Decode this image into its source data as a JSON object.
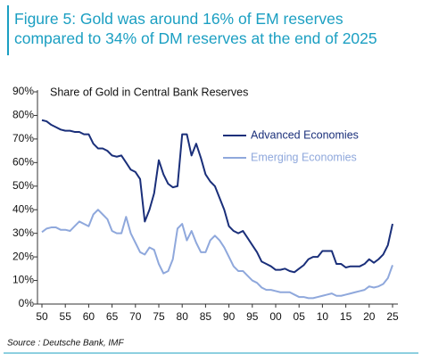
{
  "chart_data": {
    "type": "line",
    "title": "Figure 5: Gold was around 16% of EM reserves compared to 34% of DM reserves at the end of 2025",
    "subtitle": "Share of Gold in Central Bank Reserves",
    "source": "Source : Deutsche Bank, IMF",
    "x": [
      1950,
      1951,
      1952,
      1953,
      1954,
      1955,
      1956,
      1957,
      1958,
      1959,
      1960,
      1961,
      1962,
      1963,
      1964,
      1965,
      1966,
      1967,
      1968,
      1969,
      1970,
      1971,
      1972,
      1973,
      1974,
      1975,
      1976,
      1977,
      1978,
      1979,
      1980,
      1981,
      1982,
      1983,
      1984,
      1985,
      1986,
      1987,
      1988,
      1989,
      1990,
      1991,
      1992,
      1993,
      1994,
      1995,
      1996,
      1997,
      1998,
      1999,
      2000,
      2001,
      2002,
      2003,
      2004,
      2005,
      2006,
      2007,
      2008,
      2009,
      2010,
      2011,
      2012,
      2013,
      2014,
      2015,
      2016,
      2017,
      2018,
      2019,
      2020,
      2021,
      2022,
      2023,
      2024,
      2025
    ],
    "series": [
      {
        "name": "Advanced Economies",
        "color": "#1a2f7a",
        "values": [
          78,
          77.5,
          76,
          75,
          74,
          73.5,
          73.5,
          73,
          73,
          72,
          72,
          68,
          66,
          66,
          65,
          63,
          62.5,
          63,
          60,
          57,
          56,
          53,
          35,
          40,
          47,
          61,
          55,
          51,
          49.5,
          50,
          72,
          72,
          63,
          68,
          62,
          55,
          52,
          50,
          45,
          40,
          33,
          31,
          30,
          31,
          28,
          25,
          22,
          18,
          17,
          16,
          14.5,
          14.5,
          15,
          14,
          13.5,
          15,
          16.5,
          19,
          20,
          20,
          22.5,
          22.5,
          22.5,
          17,
          17,
          15.5,
          16,
          16,
          16,
          17,
          19,
          17.5,
          19,
          21,
          25,
          34
        ]
      },
      {
        "name": "Emerging Economies",
        "color": "#8fa8dc",
        "values": [
          30.5,
          32,
          32.5,
          32.5,
          31.5,
          31.5,
          31,
          33,
          35,
          34,
          33,
          38,
          40,
          38,
          36,
          31,
          30,
          30,
          37,
          30,
          26,
          22,
          21,
          24,
          23,
          17,
          13,
          14,
          19,
          32,
          34,
          27,
          31,
          26,
          22,
          22,
          27,
          29,
          27,
          24,
          20,
          16,
          14,
          14,
          12,
          10,
          9,
          7,
          6,
          6,
          5.5,
          5,
          5,
          5,
          4,
          3,
          3,
          2.5,
          2.5,
          3,
          3.5,
          4,
          4.5,
          3.5,
          3.5,
          4,
          4.5,
          5,
          5.5,
          6,
          7.5,
          7,
          7.5,
          8.5,
          11,
          16.5
        ]
      }
    ],
    "xlim": [
      1950,
      2025
    ],
    "xticks": [
      {
        "value": 1950,
        "label": "50"
      },
      {
        "value": 1955,
        "label": "55"
      },
      {
        "value": 1960,
        "label": "60"
      },
      {
        "value": 1965,
        "label": "65"
      },
      {
        "value": 1970,
        "label": "70"
      },
      {
        "value": 1975,
        "label": "75"
      },
      {
        "value": 1980,
        "label": "80"
      },
      {
        "value": 1985,
        "label": "85"
      },
      {
        "value": 1990,
        "label": "90"
      },
      {
        "value": 1995,
        "label": "95"
      },
      {
        "value": 2000,
        "label": "00"
      },
      {
        "value": 2005,
        "label": "05"
      },
      {
        "value": 2010,
        "label": "10"
      },
      {
        "value": 2015,
        "label": "15"
      },
      {
        "value": 2020,
        "label": "20"
      },
      {
        "value": 2025,
        "label": "25"
      }
    ],
    "ylim": [
      0,
      90
    ],
    "yticks": [
      {
        "value": 0,
        "label": "0%"
      },
      {
        "value": 10,
        "label": "10%"
      },
      {
        "value": 20,
        "label": "20%"
      },
      {
        "value": 30,
        "label": "30%"
      },
      {
        "value": 40,
        "label": "40%"
      },
      {
        "value": 50,
        "label": "50%"
      },
      {
        "value": 60,
        "label": "60%"
      },
      {
        "value": 70,
        "label": "70%"
      },
      {
        "value": 80,
        "label": "80%"
      },
      {
        "value": 90,
        "label": "90%"
      }
    ]
  }
}
